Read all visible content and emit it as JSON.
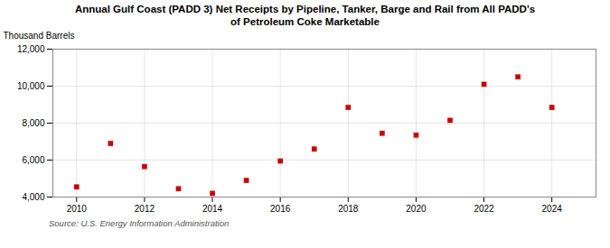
{
  "chart_data": {
    "type": "scatter",
    "title": "Annual Gulf Coast (PADD 3) Net Receipts by Pipeline, Tanker, Barge and Rail from All PADD’s\nof Petroleum Coke Marketable",
    "ylabel": "Thousand Barrels",
    "source": "Source: U.S. Energy Information Administration",
    "x": [
      2010,
      2011,
      2012,
      2013,
      2014,
      2015,
      2016,
      2017,
      2018,
      2019,
      2020,
      2021,
      2022,
      2023,
      2024
    ],
    "values": [
      4550,
      6900,
      5650,
      4450,
      4200,
      4900,
      5950,
      6600,
      8850,
      7450,
      7350,
      8150,
      10100,
      10500,
      8850
    ],
    "color": "#cc0000",
    "marker": "square",
    "grid": true,
    "xlim": [
      2009.3,
      2025.3
    ],
    "xticks": [
      2010,
      2012,
      2014,
      2016,
      2018,
      2020,
      2022,
      2024
    ],
    "ylim": [
      4000,
      12000
    ],
    "yticks": [
      {
        "value": 4000,
        "label": "4,000"
      },
      {
        "value": 6000,
        "label": "6,000"
      },
      {
        "value": 8000,
        "label": "8,000"
      },
      {
        "value": 10000,
        "label": "10,000"
      },
      {
        "value": 12000,
        "label": "12,000"
      }
    ]
  }
}
